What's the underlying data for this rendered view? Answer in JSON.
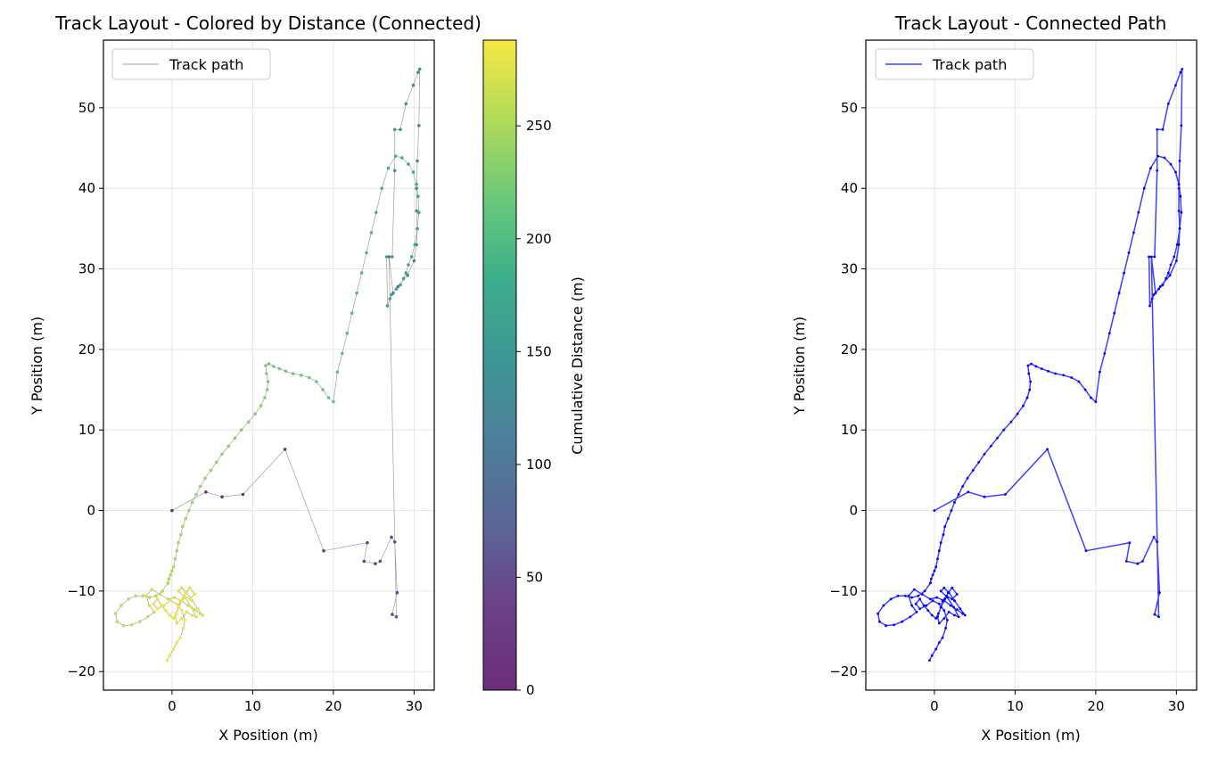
{
  "chart_data": [
    {
      "type": "line",
      "title": "Track Layout - Colored by Distance (Connected)",
      "xlabel": "X Position (m)",
      "ylabel": "Y Position (m)",
      "xlim": [
        -8.5,
        32.5
      ],
      "ylim": [
        -22.3,
        58.4
      ],
      "xticks": [
        0,
        10,
        20,
        30
      ],
      "yticks": [
        -20,
        -10,
        0,
        10,
        20,
        30,
        40,
        50
      ],
      "grid": true,
      "legend_position": "top-left",
      "legend": [
        "Track path"
      ],
      "line_color": "#888888",
      "colormap": "viridis",
      "colorbar": {
        "label": "Cumulative Distance (m)",
        "range": [
          0,
          288
        ],
        "ticks": [
          0,
          50,
          100,
          150,
          200,
          250
        ]
      }
    },
    {
      "type": "line",
      "title": "Track Layout - Connected Path",
      "xlabel": "X Position (m)",
      "ylabel": "Y Position (m)",
      "xlim": [
        -8.5,
        32.5
      ],
      "ylim": [
        -22.3,
        58.4
      ],
      "xticks": [
        0,
        10,
        20,
        30
      ],
      "yticks": [
        -20,
        -10,
        0,
        10,
        20,
        30,
        40,
        50
      ],
      "grid": true,
      "legend_position": "top-left",
      "legend": [
        "Track path"
      ],
      "line_color": "#0000ff"
    }
  ],
  "track": {
    "x": [
      0,
      4.2,
      6.2,
      8.8,
      14.0,
      18.8,
      24.2,
      23.8,
      25.2,
      25.8,
      27.2,
      27.6,
      27.9,
      27.3,
      27.8,
      26.9,
      27.4,
      28.0,
      29.2,
      30.0,
      30.3,
      30.4,
      30.3,
      30.3,
      30.4,
      30.6,
      30.7,
      30.5,
      29.9,
      29.0,
      28.3,
      27.6,
      27.6,
      27.3,
      26.6,
      26.7,
      27.0,
      27.2,
      27.8,
      28.3,
      28.7,
      29.0,
      29.3,
      29.7,
      30.1,
      30.4,
      30.6
    ],
    "y": [
      0,
      2.3,
      1.7,
      2.0,
      7.6,
      -5.0,
      -4.0,
      -6.3,
      -6.6,
      -6.3,
      -3.3,
      -3.9,
      -10.2,
      -12.9,
      -13.2,
      31.5,
      27.0,
      27.8,
      29.2,
      31.0,
      33.0,
      35.0,
      37.2,
      40.0,
      43.4,
      47.8,
      54.8,
      54.4,
      52.8,
      50.5,
      47.3,
      47.3,
      42.2,
      31.5,
      31.5,
      25.4,
      26.3,
      26.8,
      27.5,
      28.0,
      28.8,
      29.5,
      30.5,
      31.5,
      33.0,
      35.0,
      37.0
    ],
    "cumdist": [
      0,
      5,
      7,
      10,
      17,
      29,
      35,
      37,
      38,
      39,
      42,
      43,
      49,
      52,
      53,
      98,
      103,
      104,
      106,
      108,
      110,
      112,
      114,
      117,
      120,
      125,
      132,
      133,
      135,
      137,
      140,
      141,
      146,
      156,
      157,
      163,
      164,
      165,
      166,
      167,
      168,
      169,
      170,
      171,
      173,
      175,
      177
    ]
  },
  "track_part2": {
    "x": [
      30.6,
      30.5,
      30.3,
      29.9,
      29.3,
      28.5,
      27.7,
      26.8,
      26.0,
      25.3,
      24.7,
      24.1,
      23.5,
      22.9,
      22.3,
      21.7,
      21.1,
      20.5,
      20.0,
      19.4,
      18.7,
      17.9,
      17.0,
      16.0,
      15.0,
      14.1,
      13.3,
      12.6,
      12.0,
      11.6,
      11.7,
      11.9,
      11.8,
      11.5,
      11.0,
      10.3,
      9.5,
      8.6,
      7.8,
      7.0,
      6.2,
      5.5,
      4.8,
      4.1,
      3.5,
      3.0,
      2.5,
      2.1,
      1.7,
      1.3,
      1.1,
      0.8,
      0.6,
      0.4,
      0.2,
      0.0,
      -0.2,
      -0.4,
      -0.5
    ],
    "y": [
      37.0,
      39.0,
      40.5,
      42.0,
      43.0,
      43.8,
      44.0,
      42.5,
      40.0,
      37.0,
      34.5,
      32.0,
      29.5,
      27.0,
      24.5,
      22.0,
      19.5,
      17.2,
      13.5,
      14.0,
      15.0,
      16.0,
      16.5,
      16.8,
      17.0,
      17.3,
      17.6,
      17.9,
      18.2,
      18.0,
      17.0,
      16.0,
      15.0,
      14.0,
      13.0,
      12.0,
      11.0,
      10.0,
      9.0,
      8.0,
      7.0,
      6.0,
      5.0,
      4.0,
      3.0,
      2.0,
      1.0,
      0.0,
      -1.0,
      -2.0,
      -3.0,
      -4.0,
      -5.0,
      -6.0,
      -7.0,
      -7.5,
      -8.0,
      -8.5,
      -9.0
    ],
    "cumdist": [
      177,
      178,
      180,
      181,
      182,
      183,
      184,
      186,
      188,
      190,
      193,
      195,
      198,
      200,
      203,
      205,
      208,
      210,
      214,
      215,
      216,
      217,
      218,
      219,
      220,
      221,
      222,
      223,
      224,
      225,
      226,
      227,
      228,
      229,
      230,
      231,
      232,
      233,
      234,
      235,
      236,
      237,
      238,
      239,
      240,
      241,
      242,
      243,
      244,
      245,
      246,
      247,
      248,
      249,
      250,
      250,
      251,
      251,
      252
    ]
  },
  "loops": {
    "x": [
      -0.5,
      -1.2,
      -2.0,
      -2.8,
      -3.6,
      -4.5,
      -5.4,
      -6.3,
      -7.0,
      -6.8,
      -6.0,
      -5.0,
      -4.0,
      -3.0,
      -2.2,
      -2.8,
      -3.2,
      -2.5,
      -1.5,
      -0.5,
      0.3,
      1.2,
      2.0,
      2.8,
      3.5,
      3.8,
      3.2,
      2.5,
      1.8,
      1.2,
      0.8,
      1.6,
      2.4,
      3.0,
      2.5,
      1.8,
      1.2,
      0.6,
      0.4,
      0.8,
      1.3,
      1.7,
      2.2,
      2.8,
      2.2,
      1.5,
      1.0,
      0.8,
      0.5,
      0.2,
      -0.3,
      -0.8,
      -1.3,
      -1.8,
      -2.3,
      -1.8,
      -1.0,
      -0.2,
      0.6,
      1.2,
      1.6,
      1.4,
      1.0,
      0.6,
      0.2,
      -0.3,
      -0.6
    ],
    "y": [
      -9.0,
      -10.0,
      -10.6,
      -10.8,
      -10.6,
      -10.6,
      -11.0,
      -11.8,
      -12.8,
      -13.8,
      -14.3,
      -14.2,
      -13.8,
      -13.2,
      -12.6,
      -11.8,
      -10.6,
      -9.8,
      -10.4,
      -11.0,
      -10.8,
      -11.2,
      -11.8,
      -12.3,
      -12.8,
      -13.0,
      -12.2,
      -11.2,
      -10.2,
      -9.6,
      -10.0,
      -10.8,
      -12.0,
      -13.2,
      -13.0,
      -12.6,
      -13.4,
      -14.0,
      -13.2,
      -12.0,
      -11.0,
      -10.2,
      -9.6,
      -10.4,
      -11.0,
      -10.6,
      -11.2,
      -12.0,
      -12.8,
      -13.4,
      -13.0,
      -12.4,
      -11.8,
      -11.0,
      -11.6,
      -12.2,
      -11.8,
      -11.2,
      -11.6,
      -12.4,
      -13.6,
      -14.6,
      -15.8,
      -16.4,
      -17.2,
      -18.0,
      -18.6
    ],
    "cumdist": [
      252,
      253,
      254,
      255,
      256,
      257,
      258,
      259,
      260,
      261,
      262,
      263,
      264,
      265,
      266,
      267,
      268,
      269,
      270,
      270,
      271,
      271,
      272,
      272,
      273,
      273,
      274,
      274,
      275,
      275,
      276,
      276,
      277,
      277,
      278,
      278,
      279,
      279,
      280,
      280,
      281,
      281,
      282,
      282,
      283,
      283,
      283,
      284,
      284,
      284,
      285,
      285,
      285,
      286,
      286,
      286,
      286,
      287,
      287,
      287,
      287,
      287,
      288,
      288,
      288,
      288,
      288
    ]
  }
}
